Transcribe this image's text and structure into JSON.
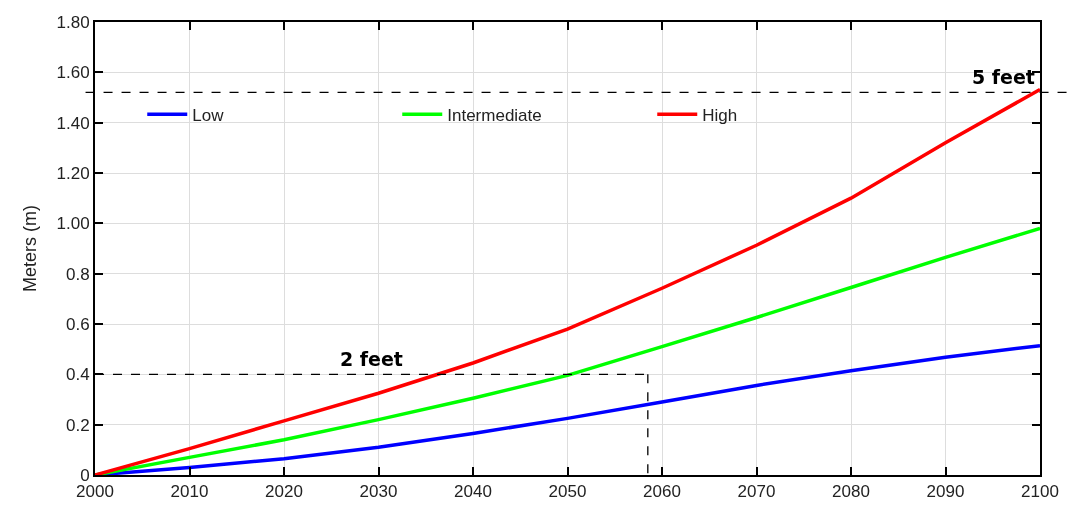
{
  "chart_data": {
    "type": "line",
    "ylabel": "Meters (m)",
    "x": [
      2000,
      2010,
      2020,
      2030,
      2040,
      2050,
      2060,
      2070,
      2080,
      2090,
      2100
    ],
    "series": [
      {
        "name": "Low",
        "color": "#0000ff",
        "values": [
          0,
          0.03,
          0.065,
          0.11,
          0.165,
          0.225,
          0.29,
          0.356,
          0.414,
          0.468,
          0.514
        ]
      },
      {
        "name": "Intermediate",
        "color": "#00ff00",
        "values": [
          0,
          0.07,
          0.14,
          0.22,
          0.305,
          0.396,
          0.51,
          0.626,
          0.745,
          0.865,
          0.98
        ]
      },
      {
        "name": "High",
        "color": "#ff0000",
        "values": [
          0,
          0.105,
          0.215,
          0.325,
          0.445,
          0.58,
          0.742,
          0.913,
          1.1,
          1.32,
          1.532
        ]
      }
    ],
    "xlim": [
      2000,
      2100
    ],
    "xticks": [
      2000,
      2010,
      2020,
      2030,
      2040,
      2050,
      2060,
      2070,
      2080,
      2090,
      2100
    ],
    "ylim": [
      0,
      1.8
    ],
    "yticks": [
      0,
      0.2,
      0.4,
      0.6,
      0.8,
      {
        "value": 1,
        "label": "1.00"
      },
      {
        "value": 1.2,
        "label": "1.20"
      },
      {
        "value": 1.4,
        "label": "1.40"
      },
      {
        "value": 1.6,
        "label": "1.60"
      },
      {
        "value": 1.8,
        "label": "1.80"
      }
    ],
    "ref_lines": [
      {
        "axis": "y",
        "value": 1.52,
        "label": "5 feet",
        "color": "#000000",
        "line_style": "dashed"
      },
      {
        "axis": "y",
        "value": 0.4,
        "label": "2 feet",
        "color": "#000000",
        "line_style": "dashed"
      },
      {
        "axis": "x",
        "value": 2058.5,
        "color": "#000000",
        "line_style": "dashed"
      }
    ],
    "grid": true,
    "legend": "top",
    "marker": "none",
    "line_style": "solid"
  }
}
